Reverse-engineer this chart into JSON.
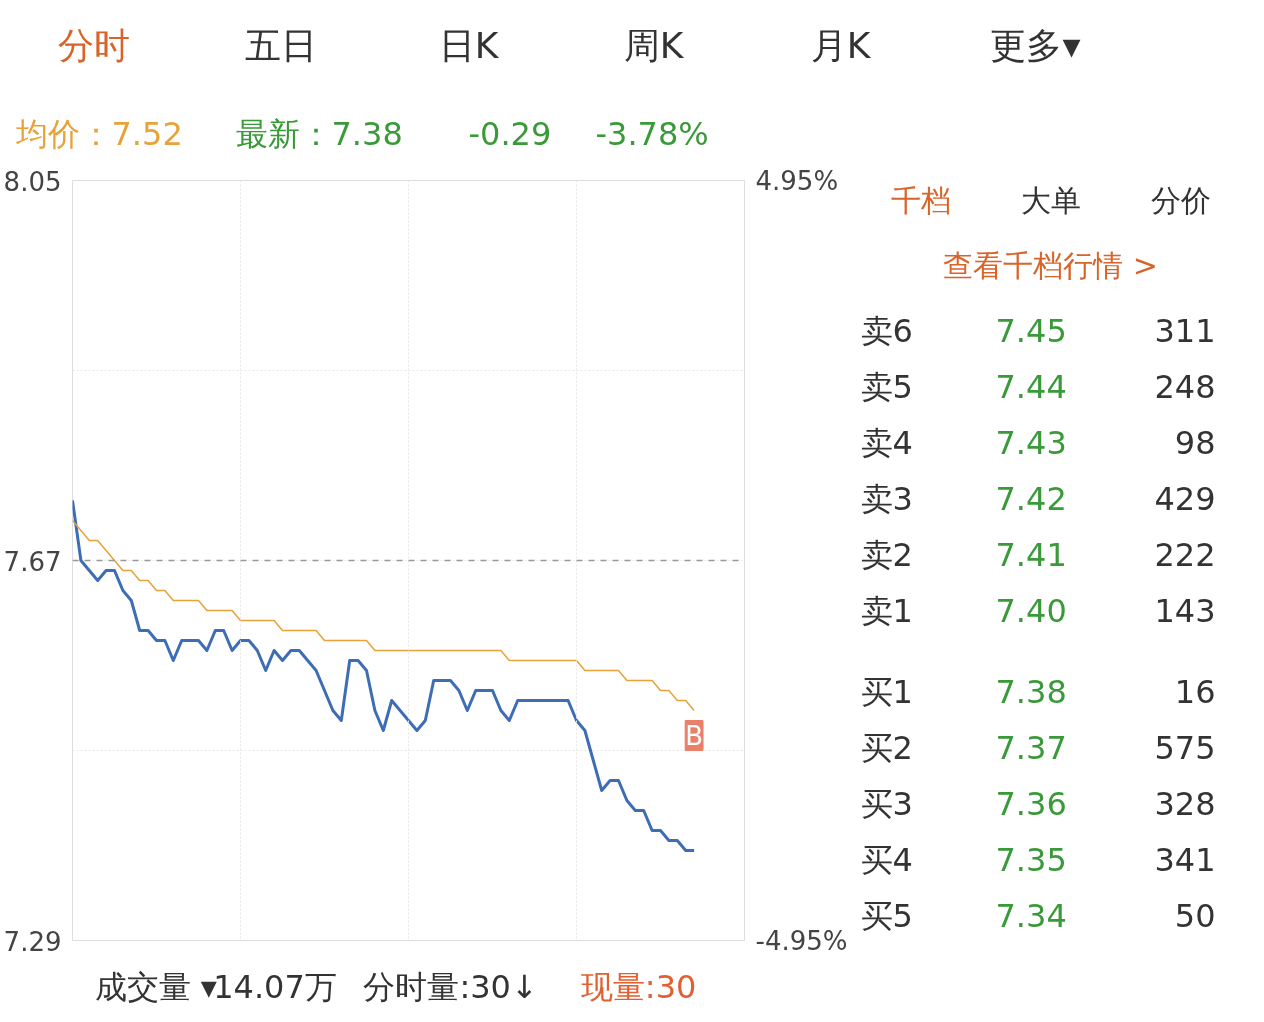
{
  "chart_data": {
    "type": "line",
    "ylim": [
      7.29,
      8.05
    ],
    "y2lim": [
      -4.95,
      4.95
    ],
    "categories": [
      null,
      null,
      null,
      null,
      null,
      null,
      null,
      null,
      null,
      null,
      null,
      null,
      null,
      null,
      null,
      null,
      null,
      null,
      null,
      null,
      null,
      null,
      null,
      null,
      null,
      null,
      null,
      null,
      null,
      null,
      null,
      null,
      null,
      null,
      null,
      null,
      null,
      null,
      null,
      null,
      null,
      null,
      null,
      null,
      null,
      null,
      null,
      null,
      null,
      null,
      null,
      null,
      null,
      null,
      null,
      null,
      null,
      null,
      null,
      null,
      null,
      null,
      null,
      null,
      null,
      null,
      null,
      null,
      null,
      null,
      null,
      null,
      null,
      null,
      null,
      null,
      null,
      null,
      null,
      null,
      null
    ],
    "yticks": [
      7.29,
      {
        "value": 7.48,
        "label": null
      },
      7.67,
      {
        "value": 7.86,
        "label": null
      },
      8.05
    ],
    "y2ticks": [
      {
        "value": -4.95,
        "label": "-4.95%"
      },
      {
        "value": 4.95,
        "label": "4.95%"
      }
    ],
    "tick_labels": "y",
    "grid": true,
    "marker": "none",
    "line_style": "solid",
    "ref_lines": [
      {
        "axis": "y",
        "value": 7.67,
        "label": null,
        "color": "#999999",
        "line_style": "dashed"
      }
    ],
    "series": [
      {
        "color": "#3d6db5",
        "values": [
          7.73,
          7.67,
          7.66,
          7.65,
          7.66,
          7.66,
          7.64,
          7.63,
          7.6,
          7.6,
          7.59,
          7.59,
          7.57,
          7.59,
          7.59,
          7.59,
          7.58,
          7.6,
          7.6,
          7.58,
          7.59,
          7.59,
          7.58,
          7.56,
          7.58,
          7.57,
          7.58,
          7.58,
          7.57,
          7.56,
          7.54,
          7.52,
          7.51,
          7.57,
          7.57,
          7.56,
          7.52,
          7.5,
          7.53,
          7.52,
          7.51,
          7.5,
          7.51,
          7.55,
          7.55,
          7.55,
          7.54,
          7.52,
          7.54,
          7.54,
          7.54,
          7.52,
          7.51,
          7.53,
          7.53,
          7.53,
          7.53,
          7.53,
          7.53,
          7.53,
          7.51,
          7.5,
          7.47,
          7.44,
          7.45,
          7.45,
          7.43,
          7.42,
          7.42,
          7.4,
          7.4,
          7.39,
          7.39,
          7.38,
          7.38,
          null,
          null,
          null,
          null,
          null,
          null
        ]
      },
      {
        "color": "#e8a23a",
        "values": [
          7.71,
          7.7,
          7.69,
          7.69,
          7.68,
          7.67,
          7.66,
          7.66,
          7.65,
          7.65,
          7.64,
          7.64,
          7.63,
          7.63,
          7.63,
          7.63,
          7.62,
          7.62,
          7.62,
          7.62,
          7.61,
          7.61,
          7.61,
          7.61,
          7.61,
          7.6,
          7.6,
          7.6,
          7.6,
          7.6,
          7.59,
          7.59,
          7.59,
          7.59,
          7.59,
          7.59,
          7.58,
          7.58,
          7.58,
          7.58,
          7.58,
          7.58,
          7.58,
          7.58,
          7.58,
          7.58,
          7.58,
          7.58,
          7.58,
          7.58,
          7.58,
          7.58,
          7.57,
          7.57,
          7.57,
          7.57,
          7.57,
          7.57,
          7.57,
          7.57,
          7.57,
          7.56,
          7.56,
          7.56,
          7.56,
          7.56,
          7.55,
          7.55,
          7.55,
          7.55,
          7.54,
          7.54,
          7.53,
          7.53,
          7.52,
          null,
          null,
          null,
          null,
          null,
          null
        ]
      }
    ],
    "annotations": [
      "分时",
      "五日",
      "日K",
      "周K",
      "月K",
      "更多▾",
      "均价：7.52",
      "最新：7.38",
      "-0.29",
      "-3.78%",
      "成交量 ▾",
      "14.07万",
      "分时量:30↓",
      "现量:30",
      "B",
      "千档",
      "大单",
      "分价",
      "查看千档行情 >",
      "卖6",
      "7.45",
      "311",
      "卖5",
      "7.44",
      "248",
      "卖4",
      "7.43",
      "98",
      "卖3",
      "7.42",
      "429",
      "卖2",
      "7.41",
      "222",
      "卖1",
      "7.40",
      "143",
      "买1",
      "7.38",
      "16",
      "买2",
      "7.37",
      "575",
      "买3",
      "7.36",
      "328",
      "买4",
      "7.35",
      "341",
      "买5",
      "7.34",
      "50"
    ]
  }
}
